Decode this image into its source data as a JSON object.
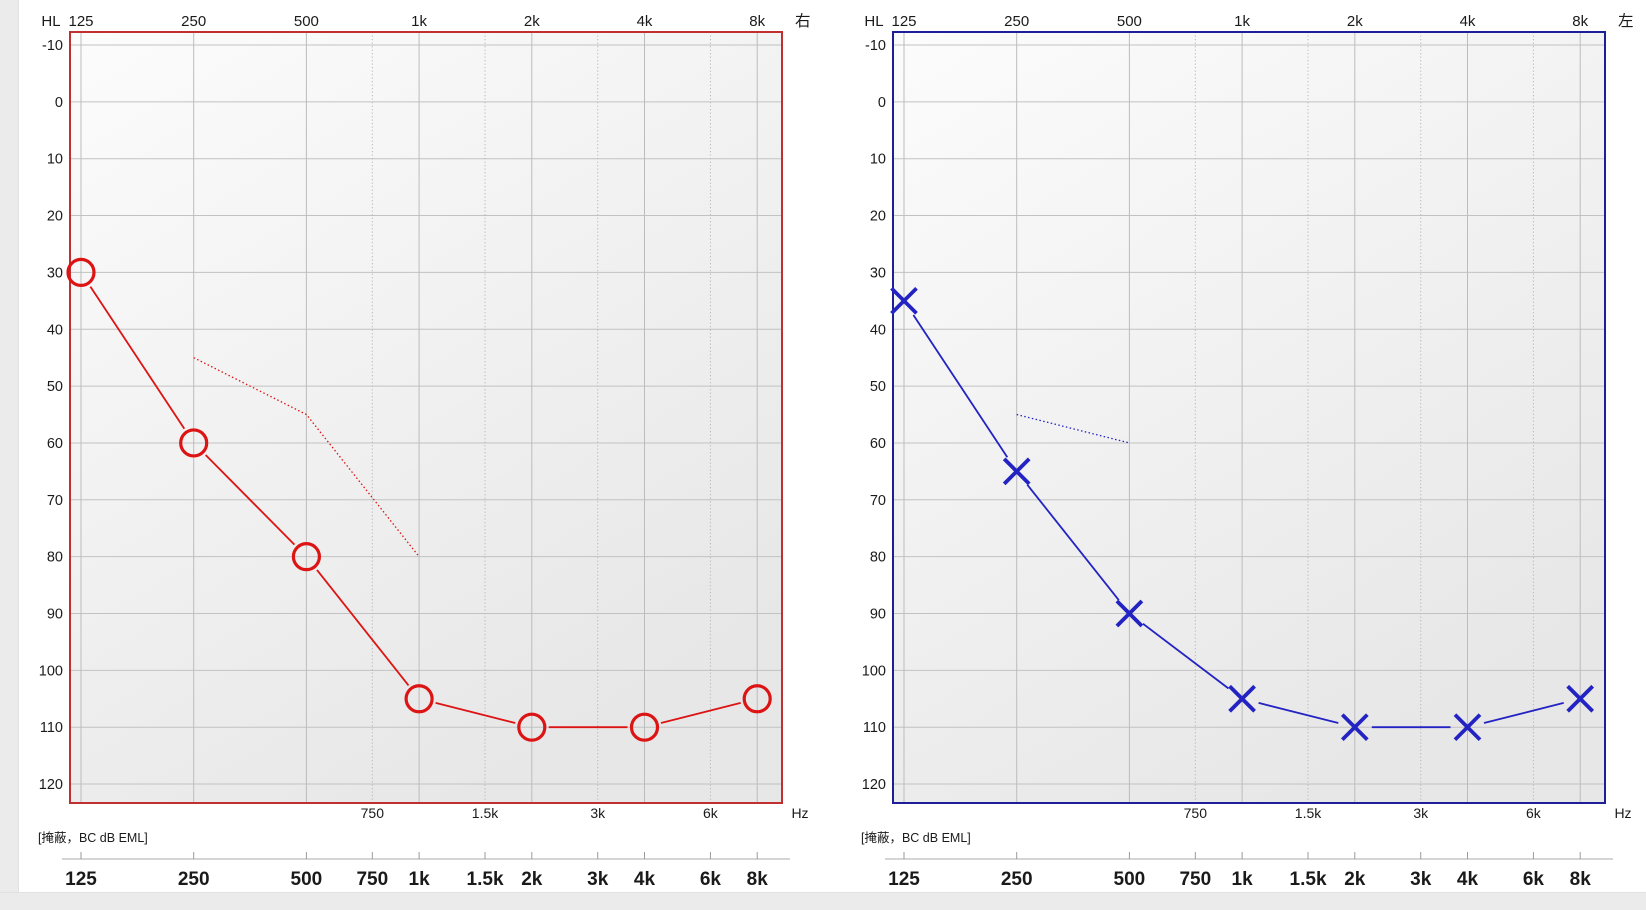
{
  "page": {
    "background": "#ffffff",
    "left_strip_color": "#ebebeb",
    "bottom_strip_color": "#ebebeb"
  },
  "axes": {
    "hl_label": "HL",
    "hz_label": "Hz",
    "db_ticks": [
      -10,
      0,
      10,
      20,
      30,
      40,
      50,
      60,
      70,
      80,
      90,
      100,
      110,
      120
    ],
    "top_freqs": [
      {
        "hz": 125,
        "label": "125"
      },
      {
        "hz": 250,
        "label": "250"
      },
      {
        "hz": 500,
        "label": "500"
      },
      {
        "hz": 1000,
        "label": "1k"
      },
      {
        "hz": 2000,
        "label": "2k"
      },
      {
        "hz": 4000,
        "label": "4k"
      },
      {
        "hz": 8000,
        "label": "8k"
      }
    ],
    "inter_freqs": [
      {
        "hz": 750,
        "label": "750"
      },
      {
        "hz": 1500,
        "label": "1.5k"
      },
      {
        "hz": 3000,
        "label": "3k"
      },
      {
        "hz": 6000,
        "label": "6k"
      }
    ],
    "ruler_freqs": [
      {
        "hz": 125,
        "label": "125"
      },
      {
        "hz": 250,
        "label": "250"
      },
      {
        "hz": 500,
        "label": "500"
      },
      {
        "hz": 750,
        "label": "750"
      },
      {
        "hz": 1000,
        "label": "1k"
      },
      {
        "hz": 1500,
        "label": "1.5k"
      },
      {
        "hz": 2000,
        "label": "2k"
      },
      {
        "hz": 3000,
        "label": "3k"
      },
      {
        "hz": 4000,
        "label": "4k"
      },
      {
        "hz": 6000,
        "label": "6k"
      },
      {
        "hz": 8000,
        "label": "8k"
      }
    ]
  },
  "charts": [
    {
      "id": "right-ear",
      "ear_label": "右",
      "symbol": "circle",
      "border_color": "#c03030",
      "data_color": "#dc1414",
      "masking_note": "[掩蔽，BC dB EML]"
    },
    {
      "id": "left-ear",
      "ear_label": "左",
      "symbol": "x",
      "border_color": "#1e1e96",
      "data_color": "#2323c3",
      "masking_note": "[掩蔽，BC dB EML]"
    }
  ],
  "chart_data": [
    {
      "type": "line",
      "title": "右 audiogram (right ear, red circles)",
      "x_scale": "log-octave",
      "x": [
        125,
        250,
        500,
        1000,
        2000,
        4000,
        8000
      ],
      "series": [
        {
          "name": "air-conduction-threshold-O",
          "x": [
            125,
            250,
            500,
            1000,
            2000,
            4000,
            8000
          ],
          "values": [
            30,
            60,
            80,
            105,
            110,
            110,
            105
          ]
        },
        {
          "name": "masked-bc-dotted-line",
          "x": [
            250,
            500,
            1000
          ],
          "values": [
            45,
            55,
            80
          ]
        }
      ],
      "xlabel": "Hz",
      "ylabel": "HL (dB)",
      "ylim": [
        -10,
        120
      ],
      "y_inverted": true,
      "grid": true,
      "legend_position": "none"
    },
    {
      "type": "line",
      "title": "左 audiogram (left ear, blue X)",
      "x_scale": "log-octave",
      "x": [
        125,
        250,
        500,
        1000,
        2000,
        4000,
        8000
      ],
      "series": [
        {
          "name": "air-conduction-threshold-X",
          "x": [
            125,
            250,
            500,
            1000,
            2000,
            4000,
            8000
          ],
          "values": [
            35,
            65,
            90,
            105,
            110,
            110,
            105
          ]
        },
        {
          "name": "masked-bc-dotted-line",
          "x": [
            250,
            500
          ],
          "values": [
            55,
            60
          ]
        }
      ],
      "xlabel": "Hz",
      "ylabel": "HL (dB)",
      "ylim": [
        -10,
        120
      ],
      "y_inverted": true,
      "grid": true,
      "legend_position": "none"
    }
  ]
}
